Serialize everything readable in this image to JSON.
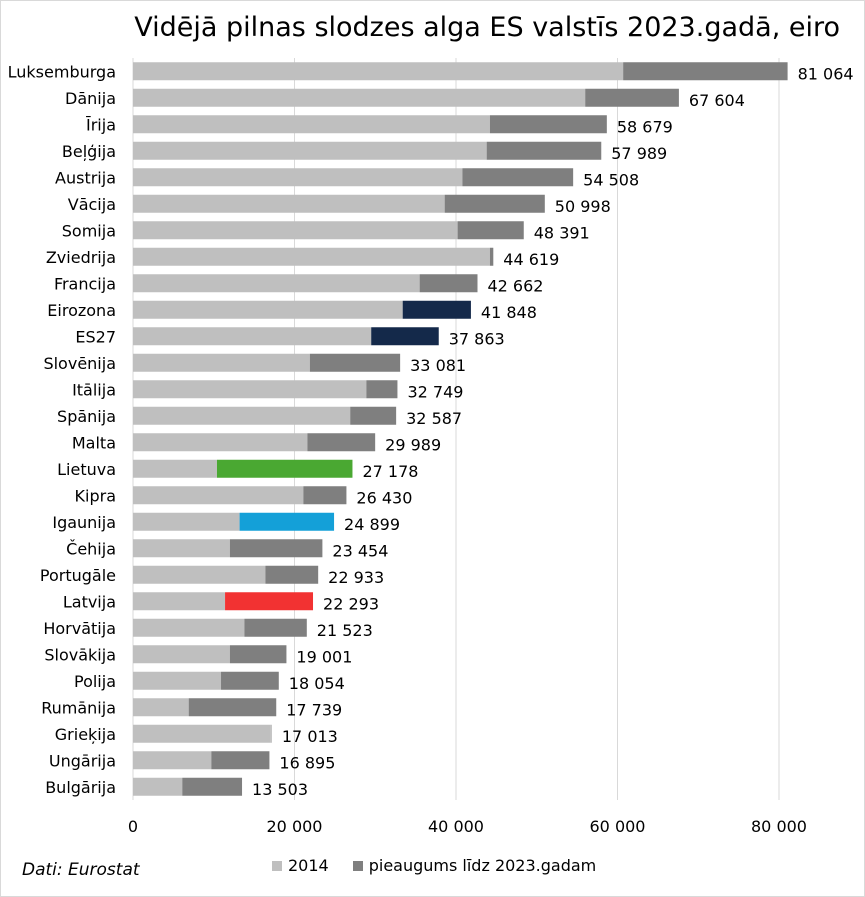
{
  "colors": {
    "base": "#bfbfbf",
    "increase": "#7f7f7f",
    "grid": "#d9d9d9",
    "highlight_dark": "#14294a",
    "lietuva": "#4aa832",
    "igaunija": "#14a0d8",
    "latvija": "#f23232"
  },
  "source": "Dati: Eurostat",
  "chart_data": {
    "type": "bar",
    "orientation": "horizontal",
    "stacked": true,
    "title": "Vidējā pilnas slodzes alga ES valstīs 2023.gadā, eiro",
    "xlabel": "",
    "ylabel": "",
    "xlim": [
      0,
      90000
    ],
    "xticks": [
      0,
      20000,
      40000,
      60000,
      80000
    ],
    "xtick_labels": [
      "0",
      "20 000",
      "40 000",
      "60 000",
      "80 000"
    ],
    "grid": true,
    "legend_position": "bottom",
    "categories": [
      "Luksemburga",
      "Dānija",
      "Īrija",
      "Beļģija",
      "Austrija",
      "Vācija",
      "Somija",
      "Zviedrija",
      "Francija",
      "Eirozona",
      "ES27",
      "Slovēnija",
      "Itālija",
      "Spānija",
      "Malta",
      "Lietuva",
      "Kipra",
      "Igaunija",
      "Čehija",
      "Portugāle",
      "Latvija",
      "Horvātija",
      "Slovākija",
      "Polija",
      "Rumānija",
      "Grieķija",
      "Ungārija",
      "Bulgārija"
    ],
    "series": [
      {
        "name": "2014",
        "color": "#bfbfbf",
        "values": [
          60700,
          56000,
          44200,
          43800,
          40800,
          38600,
          40200,
          44200,
          35500,
          33400,
          29500,
          21900,
          28900,
          26900,
          21600,
          10400,
          21100,
          13200,
          12000,
          16400,
          11400,
          13800,
          12000,
          10900,
          6900,
          17200,
          9700,
          6100
        ]
      },
      {
        "name": "pieaugums līdz 2023.gadam",
        "color": "#7f7f7f",
        "values": [
          20364,
          11604,
          14479,
          14189,
          13708,
          12398,
          8191,
          419,
          7162,
          8448,
          8363,
          11181,
          3849,
          5687,
          8389,
          16778,
          5330,
          11699,
          11454,
          6533,
          10893,
          7723,
          7001,
          7154,
          10839,
          -187,
          7195,
          7403
        ]
      }
    ],
    "totals": [
      81064,
      67604,
      58679,
      57989,
      54508,
      50998,
      48391,
      44619,
      42662,
      41848,
      37863,
      33081,
      32749,
      32587,
      29989,
      27178,
      26430,
      24899,
      23454,
      22933,
      22293,
      21523,
      19001,
      18054,
      17739,
      17013,
      16895,
      13503
    ],
    "total_labels": [
      "81 064",
      "67 604",
      "58 679",
      "57 989",
      "54 508",
      "50 998",
      "48 391",
      "44 619",
      "42 662",
      "41 848",
      "37 863",
      "33 081",
      "32 749",
      "32 587",
      "29 989",
      "27 178",
      "26 430",
      "24 899",
      "23 454",
      "22 933",
      "22 293",
      "21 523",
      "19 001",
      "18 054",
      "17 739",
      "17 013",
      "16 895",
      "13 503"
    ],
    "highlight_increase_colors": {
      "Eirozona": "#14294a",
      "ES27": "#14294a",
      "Lietuva": "#4aa832",
      "Igaunija": "#14a0d8",
      "Latvija": "#f23232"
    }
  }
}
